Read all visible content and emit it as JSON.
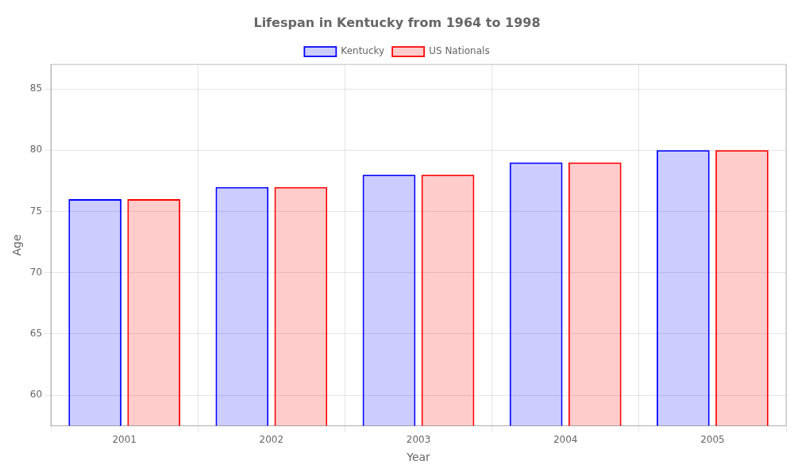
{
  "chart_data": {
    "type": "bar",
    "title": "Lifespan in Kentucky from 1964 to 1998",
    "xlabel": "Year",
    "ylabel": "Age",
    "categories": [
      "2001",
      "2002",
      "2003",
      "2004",
      "2005"
    ],
    "series": [
      {
        "name": "Kentucky",
        "color": "#0000ff",
        "values": [
          76,
          77,
          78,
          79,
          80
        ]
      },
      {
        "name": "US Nationals",
        "color": "#ff0000",
        "values": [
          76,
          77,
          78,
          79,
          80
        ]
      }
    ],
    "ylim": [
      57.5,
      87
    ],
    "yticks": [
      60,
      65,
      70,
      75,
      80,
      85
    ],
    "grid": true,
    "legend": "top"
  }
}
